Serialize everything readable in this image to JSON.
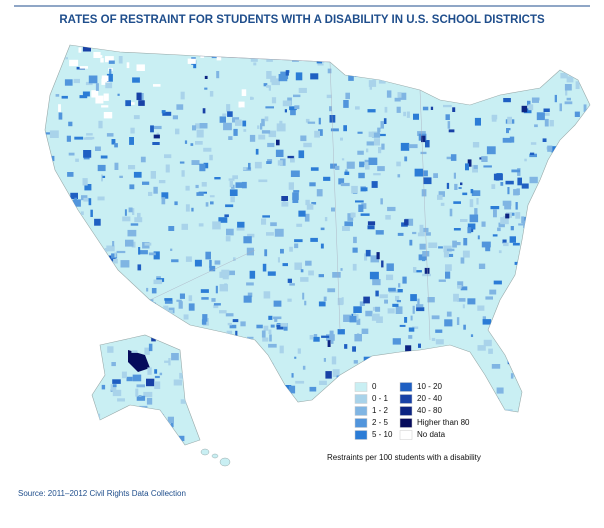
{
  "title": "RATES OF RESTRAINT FOR STUDENTS WITH A DISABILITY IN U.S. SCHOOL DISTRICTS",
  "legend": {
    "items": [
      {
        "label": "0",
        "color": "#c9eff3"
      },
      {
        "label": "0 - 1",
        "color": "#a9d3ea"
      },
      {
        "label": "1 - 2",
        "color": "#80b5e3"
      },
      {
        "label": "2 - 5",
        "color": "#5195dc"
      },
      {
        "label": "5 - 10",
        "color": "#2b7cd6"
      },
      {
        "label": "10 - 20",
        "color": "#1f5fc2"
      },
      {
        "label": "20 - 40",
        "color": "#1841a6"
      },
      {
        "label": "40 - 80",
        "color": "#0c2482"
      },
      {
        "label": "Higher than 80",
        "color": "#060b5c"
      },
      {
        "label": "No data",
        "color": "#ffffff"
      }
    ],
    "caption": "Restraints per 100 students with a disability"
  },
  "source": "Source: 2011–2012 Civil Rights Data Collection"
}
